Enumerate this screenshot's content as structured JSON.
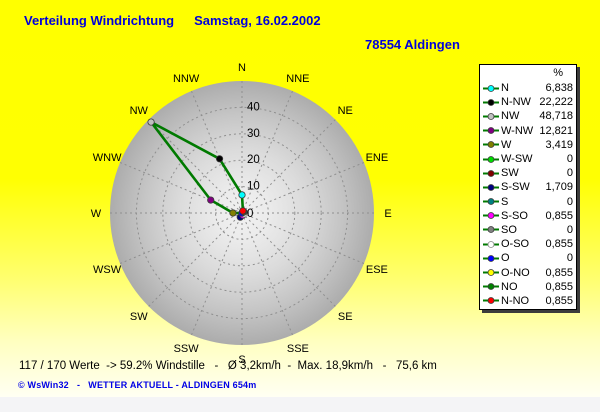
{
  "header": {
    "title": "Verteilung Windrichtung",
    "date": "Samstag, 16.02.2002",
    "station": "78554 Aldingen"
  },
  "legend": {
    "unit_header": "%"
  },
  "footer": {
    "stats": "117 / 170 Werte  -> 59.2% Windstille   -   Ø 3,2km/h  -  Max. 18,9km/h   -   75,6 km",
    "copyright": "© WsWin32   -   WETTER AKTUELL - ALDINGEN 654m"
  },
  "colors": {
    "title_text": "#0000DC",
    "background_top": "#FFFF00",
    "background_bottom": "#FFFFF3",
    "window_strip": "#F4F4F6",
    "line": "#007A00",
    "grid": "#8F8F8F",
    "disc_edge": "#ACACAC",
    "disc_center": "#F1F1F1",
    "legend_shadow": "#3C3C3C"
  },
  "chart_data": {
    "type": "line",
    "subtype": "polar-wind-rose",
    "title": "Verteilung Windrichtung",
    "unit": "%",
    "rmax": 50,
    "radial_ticks": [
      0,
      10,
      20,
      30,
      40
    ],
    "grid": true,
    "legend_position": "right",
    "compass_labels": [
      "N",
      "NNE",
      "NE",
      "ENE",
      "E",
      "ESE",
      "SE",
      "SSE",
      "S",
      "SSW",
      "SW",
      "WSW",
      "W",
      "WNW",
      "NW",
      "NNW"
    ],
    "line_color": "#007A00",
    "points": [
      {
        "label": "N",
        "value": 6.838,
        "display": "6,838",
        "color": "#00FFFF",
        "bearing_deg": 0
      },
      {
        "label": "N-NW",
        "value": 22.222,
        "display": "22,222",
        "color": "#000000",
        "bearing_deg": 337.5
      },
      {
        "label": "NW",
        "value": 48.718,
        "display": "48,718",
        "color": "#C0C0C0",
        "bearing_deg": 315
      },
      {
        "label": "W-NW",
        "value": 12.821,
        "display": "12,821",
        "color": "#800080",
        "bearing_deg": 292.5
      },
      {
        "label": "W",
        "value": 3.419,
        "display": "3,419",
        "color": "#808000",
        "bearing_deg": 270
      },
      {
        "label": "W-SW",
        "value": 0,
        "display": "0",
        "color": "#00DC00",
        "bearing_deg": 247.5
      },
      {
        "label": "SW",
        "value": 0,
        "display": "0",
        "color": "#800000",
        "bearing_deg": 225
      },
      {
        "label": "S-SW",
        "value": 1.709,
        "display": "1,709",
        "color": "#000080",
        "bearing_deg": 202.5
      },
      {
        "label": "S",
        "value": 0,
        "display": "0",
        "color": "#008080",
        "bearing_deg": 180
      },
      {
        "label": "S-SO",
        "value": 0.855,
        "display": "0,855",
        "color": "#FF00FF",
        "bearing_deg": 157.5
      },
      {
        "label": "SO",
        "value": 0,
        "display": "0",
        "color": "#808080",
        "bearing_deg": 135
      },
      {
        "label": "O-SO",
        "value": 0.855,
        "display": "0,855",
        "color": "#FFFFFF",
        "bearing_deg": 112.5
      },
      {
        "label": "O",
        "value": 0,
        "display": "0",
        "color": "#0000FF",
        "bearing_deg": 90
      },
      {
        "label": "O-NO",
        "value": 0.855,
        "display": "0,855",
        "color": "#FFFF00",
        "bearing_deg": 67.5
      },
      {
        "label": "NO",
        "value": 0.855,
        "display": "0,855",
        "color": "#008000",
        "bearing_deg": 45
      },
      {
        "label": "N-NO",
        "value": 0.855,
        "display": "0,855",
        "color": "#FF0000",
        "bearing_deg": 22.5
      }
    ]
  }
}
